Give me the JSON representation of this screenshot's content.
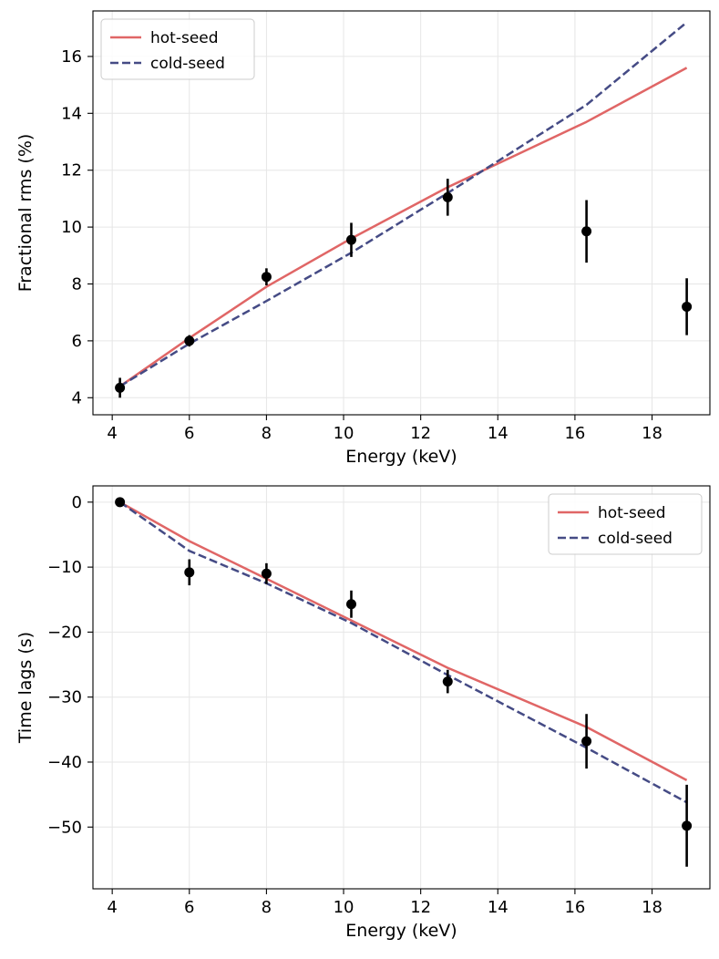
{
  "chart_data": [
    {
      "type": "line",
      "title": "",
      "xlabel": "Energy (keV)",
      "ylabel": "Fractional rms (%)",
      "xlim": [
        3.5,
        19.5
      ],
      "ylim": [
        3.4,
        17.6
      ],
      "xticks": [
        4,
        6,
        8,
        10,
        12,
        14,
        16,
        18
      ],
      "yticks": [
        4,
        6,
        8,
        10,
        12,
        14,
        16
      ],
      "grid": true,
      "legend_position": "top-left",
      "series": [
        {
          "name": "hot-seed",
          "style": "solid",
          "color": "#e06666",
          "x": [
            4.2,
            6.0,
            8.0,
            10.2,
            12.7,
            16.3,
            18.9
          ],
          "y": [
            4.4,
            6.1,
            7.9,
            9.6,
            11.4,
            13.7,
            15.6
          ]
        },
        {
          "name": "cold-seed",
          "style": "dashed",
          "color": "#454b85",
          "x": [
            4.2,
            6.0,
            8.0,
            10.2,
            12.7,
            16.3,
            18.9
          ],
          "y": [
            4.4,
            5.9,
            7.4,
            9.1,
            11.2,
            14.3,
            17.2
          ]
        }
      ],
      "points": {
        "name": "data",
        "color": "#000000",
        "x": [
          4.2,
          6.0,
          8.0,
          10.2,
          12.7,
          16.3,
          18.9
        ],
        "y": [
          4.35,
          6.0,
          8.25,
          9.55,
          11.05,
          9.85,
          7.2
        ],
        "err": [
          0.35,
          0.2,
          0.3,
          0.6,
          0.65,
          1.1,
          1.0
        ]
      }
    },
    {
      "type": "line",
      "title": "",
      "xlabel": "Energy (keV)",
      "ylabel": "Time lags (s)",
      "xlim": [
        3.5,
        19.5
      ],
      "ylim": [
        -59.5,
        2.5
      ],
      "xticks": [
        4,
        6,
        8,
        10,
        12,
        14,
        16,
        18
      ],
      "yticks": [
        0,
        -10,
        -20,
        -30,
        -40,
        -50
      ],
      "ytick_labels": [
        "0",
        "−10",
        "−20",
        "−30",
        "−40",
        "−50"
      ],
      "grid": true,
      "legend_position": "top-right",
      "series": [
        {
          "name": "hot-seed",
          "style": "solid",
          "color": "#e06666",
          "x": [
            4.2,
            6.0,
            8.0,
            10.2,
            12.7,
            16.3,
            18.9
          ],
          "y": [
            0.0,
            -6.0,
            -11.8,
            -18.2,
            -25.5,
            -34.6,
            -42.8
          ]
        },
        {
          "name": "cold-seed",
          "style": "dashed",
          "color": "#454b85",
          "x": [
            4.2,
            6.0,
            8.0,
            10.2,
            12.7,
            16.3,
            18.9
          ],
          "y": [
            0.0,
            -7.5,
            -12.5,
            -18.6,
            -26.6,
            -37.8,
            -46.2
          ]
        }
      ],
      "points": {
        "name": "data",
        "color": "#000000",
        "x": [
          4.2,
          6.0,
          8.0,
          10.2,
          12.7,
          16.3,
          18.9
        ],
        "y": [
          0.0,
          -10.8,
          -11.0,
          -15.7,
          -27.6,
          -36.8,
          -49.8
        ],
        "err": [
          0.0,
          2.0,
          1.6,
          2.1,
          1.8,
          4.2,
          6.3
        ]
      }
    }
  ]
}
